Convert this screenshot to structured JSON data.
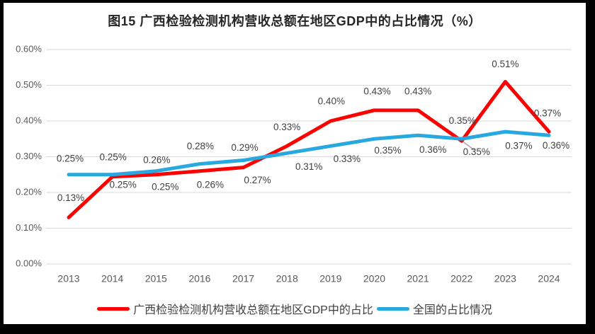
{
  "chart_data": {
    "type": "line",
    "title": "图15 广西检验检测机构营收总额在地区GDP中的占比情况（%）",
    "categories": [
      "2013",
      "2014",
      "2015",
      "2016",
      "2017",
      "2018",
      "2019",
      "2020",
      "2021",
      "2022",
      "2023",
      "2024"
    ],
    "series": [
      {
        "name": "广西检验检测机构营收总额在地区GDP中的占比",
        "color": "#FE0000",
        "values": [
          0.13,
          0.25,
          0.25,
          0.26,
          0.27,
          0.33,
          0.4,
          0.43,
          0.43,
          0.35,
          0.51,
          0.37
        ]
      },
      {
        "name": "全国的占比情况",
        "color": "#27A9E0",
        "values": [
          0.25,
          0.25,
          0.26,
          0.28,
          0.29,
          0.31,
          0.33,
          0.35,
          0.36,
          0.35,
          0.37,
          0.36
        ]
      }
    ],
    "y_ticks": [
      "0.00%",
      "0.10%",
      "0.20%",
      "0.30%",
      "0.40%",
      "0.50%",
      "0.60%"
    ],
    "ylim": [
      0,
      0.6
    ],
    "grid": true,
    "legend_position": "bottom",
    "label_format": "0.00%",
    "colors": {
      "gridline": "#D9D9D9",
      "axis_text": "#595959",
      "data_label_text": "#404040",
      "leader_line": "#A6A6A6",
      "background": "#FFFFFF"
    }
  }
}
